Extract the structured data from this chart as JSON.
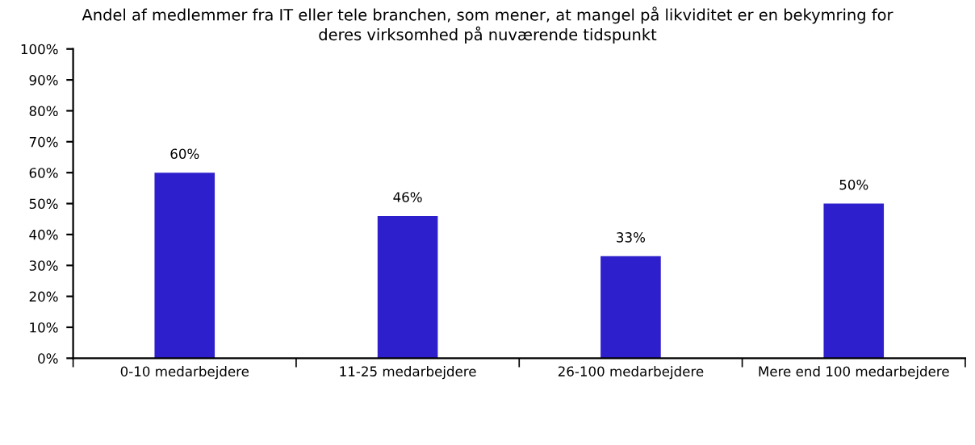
{
  "chart_data": {
    "type": "bar",
    "title": "Andel af medlemmer fra IT eller tele branchen, som mener, at mangel på likviditet er en bekymring for\nderes virksomhed på nuværende tidspunkt",
    "categories": [
      "0-10 medarbejdere",
      "11-25 medarbejdere",
      "26-100 medarbejdere",
      "Mere end 100 medarbejdere"
    ],
    "values": [
      60,
      46,
      33,
      50
    ],
    "value_labels": [
      "60%",
      "46%",
      "33%",
      "50%"
    ],
    "color": "#2e1fcc",
    "ylim": [
      0,
      100
    ],
    "yticks": [
      {
        "value": 0,
        "label": "0%"
      },
      {
        "value": 10,
        "label": "10%"
      },
      {
        "value": 20,
        "label": "20%"
      },
      {
        "value": 30,
        "label": "30%"
      },
      {
        "value": 40,
        "label": "40%"
      },
      {
        "value": 50,
        "label": "50%"
      },
      {
        "value": 60,
        "label": "60%"
      },
      {
        "value": 70,
        "label": "70%"
      },
      {
        "value": 80,
        "label": "80%"
      },
      {
        "value": 90,
        "label": "90%"
      },
      {
        "value": 100,
        "label": "100%"
      }
    ],
    "grid": false
  }
}
